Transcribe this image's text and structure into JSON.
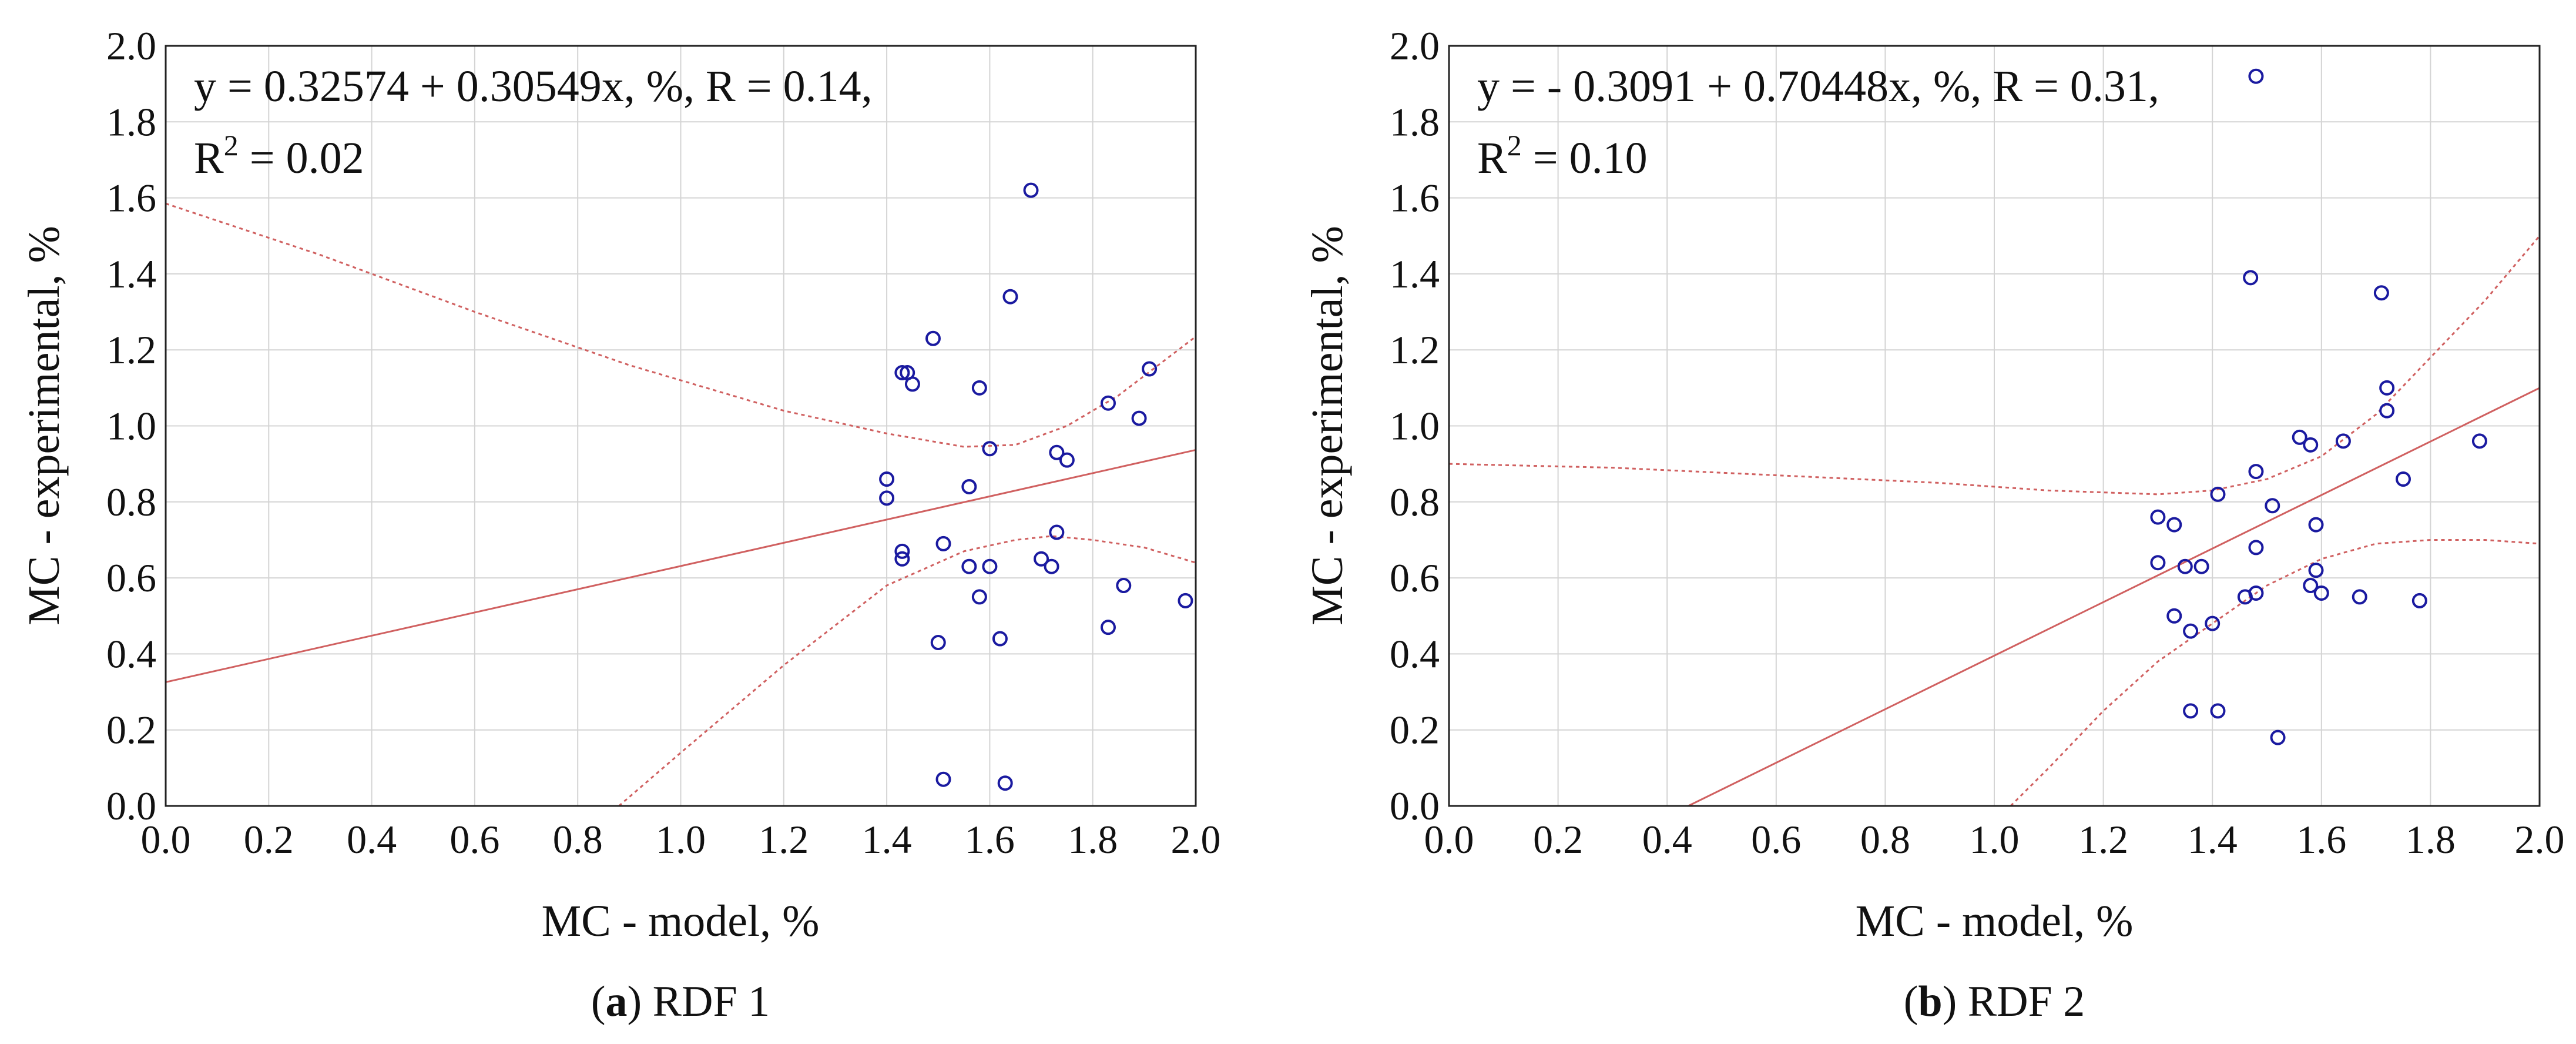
{
  "chart_data": [
    {
      "type": "scatter",
      "panel": "a",
      "caption_letter": "a",
      "caption_text": "RDF 1",
      "xlabel": "MC - model, %",
      "ylabel": "MC - experimental, %",
      "xlim": [
        0,
        2
      ],
      "ylim": [
        0,
        2
      ],
      "x_ticks": [
        "0.0",
        "0.2",
        "0.4",
        "0.6",
        "0.8",
        "1.0",
        "1.2",
        "1.4",
        "1.6",
        "1.8",
        "2.0"
      ],
      "y_ticks": [
        "0.0",
        "0.2",
        "0.4",
        "0.6",
        "0.8",
        "1.0",
        "1.2",
        "1.4",
        "1.6",
        "1.8",
        "2.0"
      ],
      "equation": "y = 0.32574 + 0.30549x, %, R = 0.14,",
      "r2_label": "R",
      "r2_sup": "2",
      "r2_value": " = 0.02",
      "intercept": 0.32574,
      "slope": 0.30549,
      "ci_band": {
        "upper": [
          [
            0.0,
            1.585
          ],
          [
            0.3,
            1.45
          ],
          [
            0.6,
            1.3
          ],
          [
            0.9,
            1.16
          ],
          [
            1.2,
            1.04
          ],
          [
            1.4,
            0.98
          ],
          [
            1.55,
            0.945
          ],
          [
            1.65,
            0.95
          ],
          [
            1.75,
            1.0
          ],
          [
            1.85,
            1.08
          ],
          [
            2.0,
            1.235
          ]
        ],
        "lower": [
          [
            0.88,
            0.0
          ],
          [
            1.0,
            0.14
          ],
          [
            1.2,
            0.37
          ],
          [
            1.4,
            0.58
          ],
          [
            1.55,
            0.67
          ],
          [
            1.65,
            0.7
          ],
          [
            1.72,
            0.71
          ],
          [
            1.8,
            0.7
          ],
          [
            1.9,
            0.68
          ],
          [
            2.0,
            0.64
          ]
        ]
      },
      "points": [
        [
          1.4,
          0.86
        ],
        [
          1.4,
          0.81
        ],
        [
          1.43,
          1.14
        ],
        [
          1.44,
          1.14
        ],
        [
          1.45,
          1.11
        ],
        [
          1.43,
          0.67
        ],
        [
          1.43,
          0.65
        ],
        [
          1.49,
          1.23
        ],
        [
          1.51,
          0.69
        ],
        [
          1.5,
          0.43
        ],
        [
          1.51,
          0.07
        ],
        [
          1.56,
          0.84
        ],
        [
          1.56,
          0.63
        ],
        [
          1.58,
          1.1
        ],
        [
          1.58,
          0.55
        ],
        [
          1.6,
          0.94
        ],
        [
          1.6,
          0.63
        ],
        [
          1.62,
          0.44
        ],
        [
          1.63,
          0.06
        ],
        [
          1.64,
          1.34
        ],
        [
          1.68,
          1.62
        ],
        [
          1.7,
          0.65
        ],
        [
          1.72,
          0.63
        ],
        [
          1.73,
          0.72
        ],
        [
          1.73,
          0.93
        ],
        [
          1.75,
          0.91
        ],
        [
          1.83,
          1.06
        ],
        [
          1.83,
          0.47
        ],
        [
          1.86,
          0.58
        ],
        [
          1.89,
          1.02
        ],
        [
          1.91,
          1.15
        ],
        [
          1.98,
          0.54
        ]
      ]
    },
    {
      "type": "scatter",
      "panel": "b",
      "caption_letter": "b",
      "caption_text": "RDF 2",
      "xlabel": "MC - model, %",
      "ylabel": "MC - experimental, %",
      "xlim": [
        0,
        2
      ],
      "ylim": [
        0,
        2
      ],
      "x_ticks": [
        "0.0",
        "0.2",
        "0.4",
        "0.6",
        "0.8",
        "1.0",
        "1.2",
        "1.4",
        "1.6",
        "1.8",
        "2.0"
      ],
      "y_ticks": [
        "0.0",
        "0.2",
        "0.4",
        "0.6",
        "0.8",
        "1.0",
        "1.2",
        "1.4",
        "1.6",
        "1.8",
        "2.0"
      ],
      "equation": "y = - 0.3091 + 0.70448x, %, R = 0.31,",
      "r2_label": "R",
      "r2_sup": "2",
      "r2_value": " = 0.10",
      "intercept": -0.3091,
      "slope": 0.70448,
      "ci_band": {
        "upper": [
          [
            0.0,
            0.9
          ],
          [
            0.3,
            0.89
          ],
          [
            0.6,
            0.87
          ],
          [
            0.9,
            0.85
          ],
          [
            1.1,
            0.83
          ],
          [
            1.3,
            0.82
          ],
          [
            1.4,
            0.83
          ],
          [
            1.5,
            0.86
          ],
          [
            1.6,
            0.92
          ],
          [
            1.7,
            1.03
          ],
          [
            1.8,
            1.18
          ],
          [
            1.9,
            1.33
          ],
          [
            2.0,
            1.5
          ]
        ],
        "lower": [
          [
            1.03,
            0.0
          ],
          [
            1.1,
            0.1
          ],
          [
            1.2,
            0.25
          ],
          [
            1.3,
            0.38
          ],
          [
            1.4,
            0.48
          ],
          [
            1.5,
            0.58
          ],
          [
            1.6,
            0.65
          ],
          [
            1.7,
            0.69
          ],
          [
            1.8,
            0.7
          ],
          [
            1.9,
            0.7
          ],
          [
            2.0,
            0.69
          ]
        ]
      },
      "points": [
        [
          1.3,
          0.64
        ],
        [
          1.3,
          0.76
        ],
        [
          1.33,
          0.74
        ],
        [
          1.33,
          0.5
        ],
        [
          1.35,
          0.63
        ],
        [
          1.36,
          0.46
        ],
        [
          1.36,
          0.25
        ],
        [
          1.38,
          0.63
        ],
        [
          1.4,
          0.48
        ],
        [
          1.41,
          0.82
        ],
        [
          1.41,
          0.25
        ],
        [
          1.46,
          0.55
        ],
        [
          1.47,
          1.39
        ],
        [
          1.48,
          0.88
        ],
        [
          1.48,
          0.68
        ],
        [
          1.48,
          0.56
        ],
        [
          1.48,
          1.92
        ],
        [
          1.51,
          0.79
        ],
        [
          1.52,
          0.18
        ],
        [
          1.56,
          0.97
        ],
        [
          1.58,
          0.95
        ],
        [
          1.58,
          0.58
        ],
        [
          1.59,
          0.74
        ],
        [
          1.59,
          0.62
        ],
        [
          1.6,
          0.56
        ],
        [
          1.64,
          0.96
        ],
        [
          1.67,
          0.55
        ],
        [
          1.71,
          1.35
        ],
        [
          1.72,
          1.04
        ],
        [
          1.72,
          1.1
        ],
        [
          1.75,
          0.86
        ],
        [
          1.78,
          0.54
        ],
        [
          1.89,
          0.96
        ]
      ]
    }
  ]
}
